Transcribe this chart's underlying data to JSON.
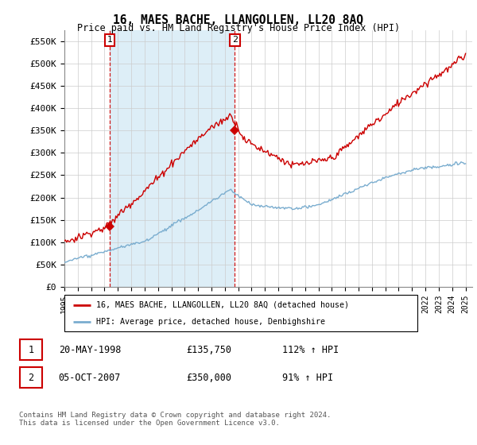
{
  "title": "16, MAES BACHE, LLANGOLLEN, LL20 8AQ",
  "subtitle": "Price paid vs. HM Land Registry's House Price Index (HPI)",
  "ylabel_ticks": [
    "£0",
    "£50K",
    "£100K",
    "£150K",
    "£200K",
    "£250K",
    "£300K",
    "£350K",
    "£400K",
    "£450K",
    "£500K",
    "£550K"
  ],
  "ytick_values": [
    0,
    50000,
    100000,
    150000,
    200000,
    250000,
    300000,
    350000,
    400000,
    450000,
    500000,
    550000
  ],
  "xmin": 1995.0,
  "xmax": 2025.5,
  "ymin": 0,
  "ymax": 575000,
  "red_color": "#cc0000",
  "blue_color": "#7aadcf",
  "blue_fill": "#ddeef7",
  "sale1_x": 1998.38,
  "sale1_y": 135750,
  "sale2_x": 2007.75,
  "sale2_y": 350000,
  "legend_line1": "16, MAES BACHE, LLANGOLLEN, LL20 8AQ (detached house)",
  "legend_line2": "HPI: Average price, detached house, Denbighshire",
  "sale1_date": "20-MAY-1998",
  "sale1_price": "£135,750",
  "sale1_hpi": "112% ↑ HPI",
  "sale2_date": "05-OCT-2007",
  "sale2_price": "£350,000",
  "sale2_hpi": "91% ↑ HPI",
  "footer": "Contains HM Land Registry data © Crown copyright and database right 2024.\nThis data is licensed under the Open Government Licence v3.0.",
  "xticks": [
    1995,
    1996,
    1997,
    1998,
    1999,
    2000,
    2001,
    2002,
    2003,
    2004,
    2005,
    2006,
    2007,
    2008,
    2009,
    2010,
    2011,
    2012,
    2013,
    2014,
    2015,
    2016,
    2017,
    2018,
    2019,
    2020,
    2021,
    2022,
    2023,
    2024,
    2025
  ]
}
